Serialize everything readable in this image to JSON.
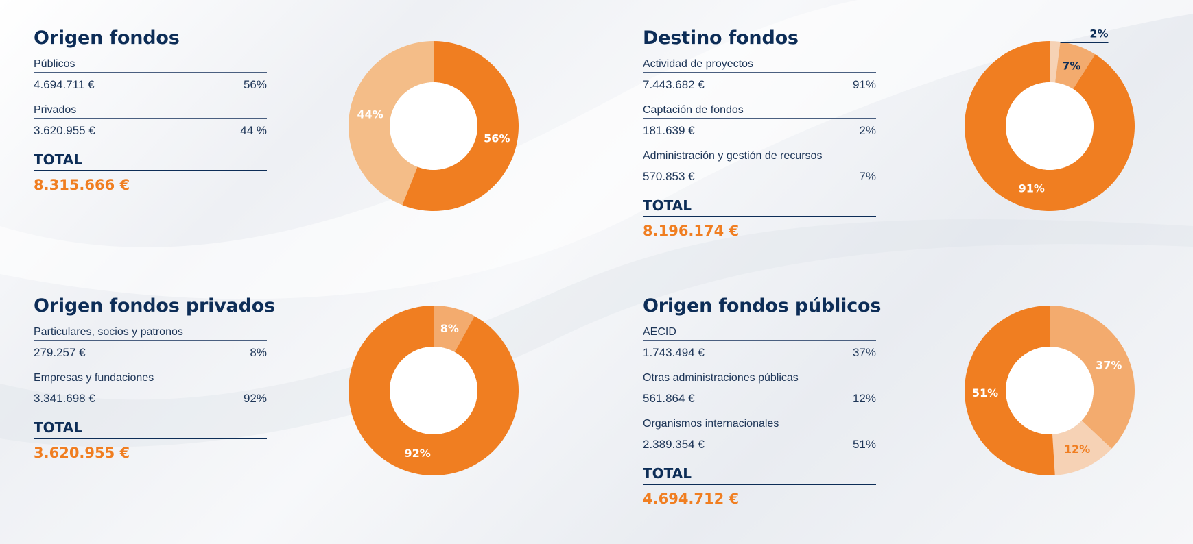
{
  "colors": {
    "title": "#0d2d57",
    "total_value": "#f07e21",
    "orange": "#f07e21",
    "orange_mid": "#f3ab6e",
    "orange_light": "#f4bd88",
    "orange_pale": "#f6d2b5"
  },
  "panels": [
    {
      "title": "Origen fondos",
      "rows": [
        {
          "label": "Públicos",
          "amount": "4.694.711 €",
          "pct": "56%"
        },
        {
          "label": "Privados",
          "amount": "3.620.955 €",
          "pct": "44 %"
        }
      ],
      "total_label": "TOTAL",
      "total_value": "8.315.666 €"
    },
    {
      "title": "Destino fondos",
      "rows": [
        {
          "label": "Actividad de proyectos",
          "amount": "7.443.682 €",
          "pct": "91%"
        },
        {
          "label": "Captación de fondos",
          "amount": "181.639 €",
          "pct": "2%"
        },
        {
          "label": "Administración y gestión de recursos",
          "amount": "570.853 €",
          "pct": "7%"
        }
      ],
      "total_label": "TOTAL",
      "total_value": "8.196.174 €"
    },
    {
      "title": "Origen fondos privados",
      "rows": [
        {
          "label": "Particulares, socios y patronos",
          "amount": "279.257 €",
          "pct": "8%"
        },
        {
          "label": "Empresas y fundaciones",
          "amount": "3.341.698 €",
          "pct": "92%"
        }
      ],
      "total_label": "TOTAL",
      "total_value": "3.620.955 €"
    },
    {
      "title": "Origen fondos públicos",
      "rows": [
        {
          "label": "AECID",
          "amount": "1.743.494  €",
          "pct": "37%"
        },
        {
          "label": "Otras administraciones públicas",
          "amount": "561.864 €",
          "pct": "12%"
        },
        {
          "label": "Organismos internacionales",
          "amount": "2.389.354 €",
          "pct": "51%"
        }
      ],
      "total_label": "TOTAL",
      "total_value": "4.694.712 €"
    }
  ],
  "chart_data": [
    {
      "type": "pie",
      "donut": true,
      "categories": [
        "Públicos",
        "Privados"
      ],
      "values": [
        56,
        44
      ],
      "labels": [
        "56%",
        "44%"
      ],
      "colors": [
        "#f07e21",
        "#f4bd88"
      ],
      "label_colors": [
        "#ffffff",
        "#ffffff"
      ]
    },
    {
      "type": "pie",
      "donut": true,
      "categories": [
        "Captación de fondos",
        "Administración y gestión de recursos",
        "Actividad de proyectos"
      ],
      "values": [
        2,
        7,
        91
      ],
      "labels": [
        "2%",
        "7%",
        "91%"
      ],
      "colors": [
        "#f6d2b5",
        "#f3ab6e",
        "#f07e21"
      ],
      "label_colors": [
        "#0d2d57",
        "#0d2d57",
        "#ffffff"
      ]
    },
    {
      "type": "pie",
      "donut": true,
      "categories": [
        "Particulares, socios y patronos",
        "Empresas y fundaciones"
      ],
      "values": [
        8,
        92
      ],
      "labels": [
        "8%",
        "92%"
      ],
      "colors": [
        "#f3ab6e",
        "#f07e21"
      ],
      "label_colors": [
        "#ffffff",
        "#ffffff"
      ]
    },
    {
      "type": "pie",
      "donut": true,
      "categories": [
        "AECID",
        "Otras administraciones públicas",
        "Organismos internacionales"
      ],
      "values": [
        37,
        12,
        51
      ],
      "labels": [
        "37%",
        "12%",
        "51%"
      ],
      "colors": [
        "#f3ab6e",
        "#f6d2b5",
        "#f07e21"
      ],
      "label_colors": [
        "#ffffff",
        "#f07e21",
        "#ffffff"
      ]
    }
  ]
}
